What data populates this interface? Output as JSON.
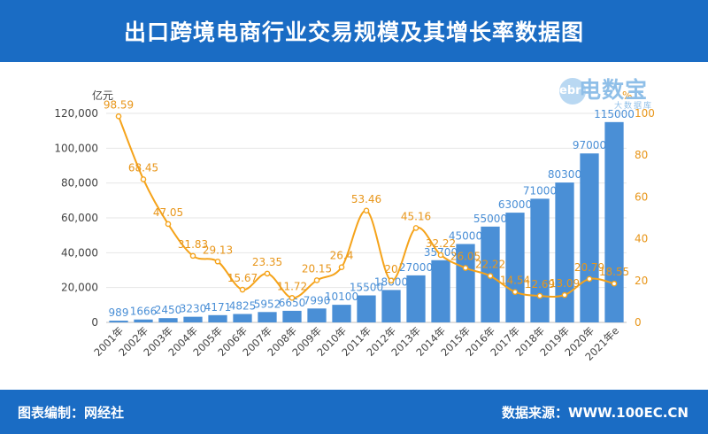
{
  "header": {
    "title": "出口跨境电商行业交易规模及其增长率数据图"
  },
  "footer": {
    "left": "图表编制：网经社",
    "right": "数据来源：WWW.100EC.CN"
  },
  "logo": {
    "badge": "ebrun",
    "main": "电数宝",
    "sub": "大数据库"
  },
  "colors": {
    "header_bg": "#1a6cc4",
    "bar": "#4a8fd6",
    "bar_label": "#4a8fd6",
    "line": "#f5a31a",
    "line_label": "#e8961a",
    "axis_text": "#444444",
    "grid": "#e6e6e6"
  },
  "chart_data": {
    "type": "bar+line",
    "categories": [
      "2001年",
      "2002年",
      "2003年",
      "2004年",
      "2005年",
      "2006年",
      "2007年",
      "2008年",
      "2009年",
      "2010年",
      "2011年",
      "2012年",
      "2013年",
      "2014年",
      "2015年",
      "2016年",
      "2017年",
      "2018年",
      "2019年",
      "2020年",
      "2021年e"
    ],
    "series": [
      {
        "name": "",
        "type": "bar",
        "axis": "left",
        "values": [
          989,
          1666,
          2450,
          3230,
          4171,
          4825,
          5952,
          6650,
          7990,
          10100,
          15500,
          18600,
          27000,
          35700,
          45000,
          55000,
          63000,
          71000,
          80300,
          97000,
          115000
        ]
      },
      {
        "name": "",
        "type": "line",
        "axis": "right",
        "values": [
          98.59,
          68.45,
          47.05,
          31.83,
          29.13,
          15.67,
          23.35,
          11.72,
          20.15,
          26.4,
          53.46,
          20,
          45.16,
          32.22,
          26.05,
          22.22,
          14.54,
          12.69,
          13.09,
          20.79,
          18.55
        ]
      }
    ],
    "y_left": {
      "label": "亿元",
      "ylim": [
        0,
        120000
      ],
      "ticks": [
        0,
        20000,
        40000,
        60000,
        80000,
        100000,
        120000
      ],
      "tick_labels": [
        "0",
        "20,000",
        "40,000",
        "60,000",
        "80,000",
        "100,000",
        "120,000"
      ]
    },
    "y_right": {
      "label": "%",
      "ylim": [
        0,
        100
      ],
      "ticks": [
        0,
        20,
        40,
        60,
        80,
        100
      ],
      "tick_labels": [
        "0",
        "20",
        "40",
        "60",
        "80",
        "100"
      ]
    },
    "grid": true,
    "legend": "none"
  }
}
